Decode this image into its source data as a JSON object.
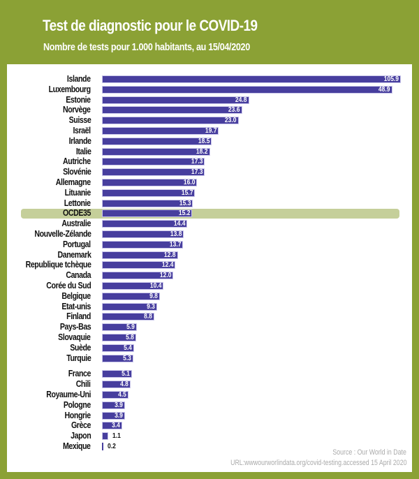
{
  "chart_data": {
    "type": "bar",
    "orientation": "horizontal",
    "title": "Test de diagnostic pour le COVID-19",
    "subtitle": "Nombre de tests pour 1.000 habitants, au 15/04/2020",
    "categories": [
      "Islande",
      "Luxembourg",
      "Estonie",
      "Norvège",
      "Suisse",
      "Israël",
      "Irlande",
      "Italie",
      "Autriche",
      "Slovénie",
      "Allemagne",
      "Lituanie",
      "Lettonie",
      "OCDE35",
      "Australie",
      "Nouvelle-Zélande",
      "Portugal",
      "Danemark",
      "Republique tchèque",
      "Canada",
      "Corée du Sud",
      "Belgique",
      "Etat-unis",
      "Finland",
      "Pays-Bas",
      "Slovaquie",
      "Suède",
      "Turquie",
      "France",
      "Chili",
      "Royaume-Uni",
      "Pologne",
      "Hongrie",
      "Grèce",
      "Japon",
      "Mexique"
    ],
    "values": [
      105.9,
      48.9,
      24.8,
      23.6,
      23.0,
      19.7,
      18.5,
      18.2,
      17.3,
      17.3,
      16.0,
      15.7,
      15.3,
      15.2,
      14.4,
      13.8,
      13.7,
      12.8,
      12.4,
      12.0,
      10.4,
      9.8,
      9.3,
      8.8,
      5.9,
      5.8,
      5.4,
      5.3,
      5.1,
      4.8,
      4.5,
      3.9,
      3.9,
      3.4,
      1.1,
      0.2
    ],
    "value_labels": [
      "105.9",
      "48.9",
      "24.8",
      "23.6",
      "23.0",
      "19.7",
      "18.5",
      "18.2",
      "17.3",
      "17.3",
      "16.0",
      "15.7",
      "15.3",
      "15.2",
      "14.4",
      "13.8",
      "13.7",
      "12.8",
      "12.4",
      "12.0",
      "10.4",
      "9.8",
      "9.3",
      "8.8",
      "5.9",
      "5.8",
      "5.4",
      "5.3",
      "5.1",
      "4.8",
      "4.5",
      "3.9",
      "3.9",
      "3.4",
      "1.1",
      "0.2"
    ],
    "highlight": "OCDE35",
    "xlabel": "",
    "ylabel": "",
    "grid": false,
    "colors": {
      "bar": "#473e9e",
      "highlight": "#c5cf9a",
      "background": "#8ba135"
    }
  },
  "source": {
    "line1": "Source : Our World in Date",
    "line2": "URL:wwwourworlindata.org/covid-testing.accessed 15 April 2020"
  }
}
